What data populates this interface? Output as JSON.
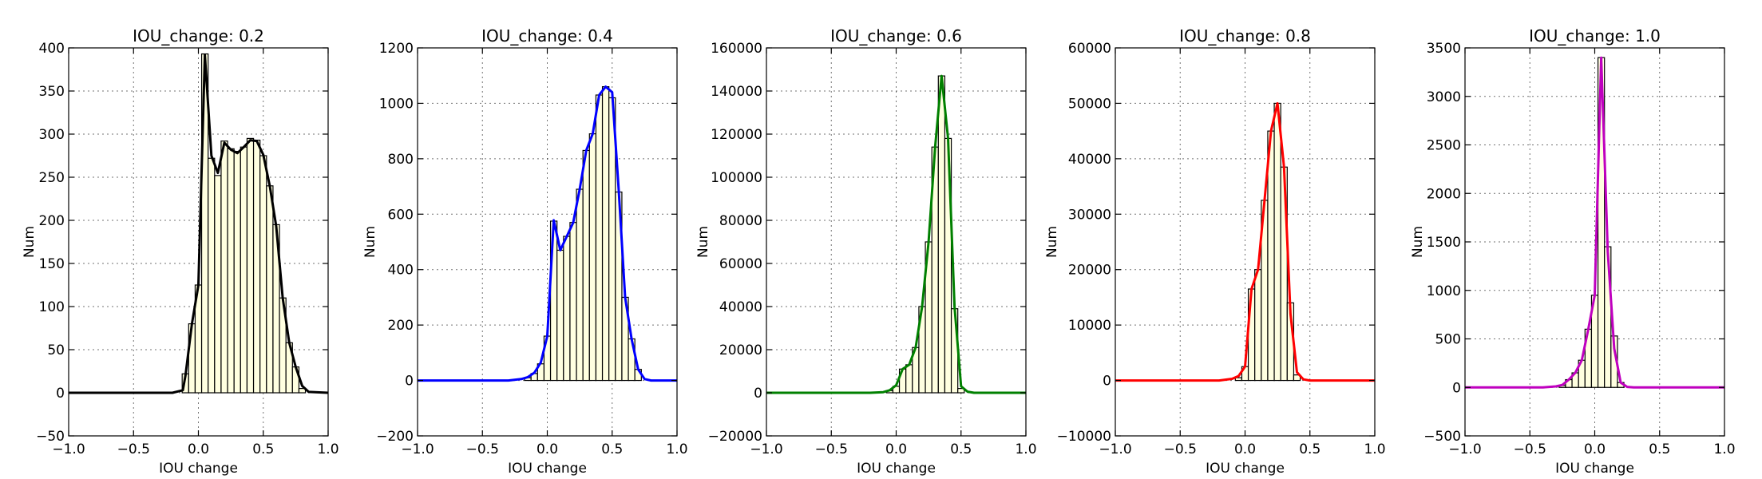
{
  "chart_data": [
    {
      "type": "bar",
      "title": "IOU_change: 0.2",
      "xlabel": "IOU change",
      "ylabel": "Num",
      "xlim": [
        -1.0,
        1.0
      ],
      "ylim": [
        -50,
        400
      ],
      "xticks": [
        "−1.0",
        "−0.5",
        "0.0",
        "0.5",
        "1.0"
      ],
      "yticks": [
        "−50",
        "0",
        "50",
        "100",
        "150",
        "200",
        "250",
        "300",
        "350",
        "400"
      ],
      "grid": true,
      "line_color": "#000000",
      "bar_color": "#ffffe0",
      "bin_width": 0.05,
      "bins": [
        {
          "x": -0.125,
          "y": 0
        },
        {
          "x": -0.1,
          "y": 22
        },
        {
          "x": -0.05,
          "y": 80
        },
        {
          "x": 0.0,
          "y": 125
        },
        {
          "x": 0.05,
          "y": 393
        },
        {
          "x": 0.1,
          "y": 272
        },
        {
          "x": 0.15,
          "y": 252
        },
        {
          "x": 0.2,
          "y": 292
        },
        {
          "x": 0.25,
          "y": 283
        },
        {
          "x": 0.3,
          "y": 280
        },
        {
          "x": 0.35,
          "y": 285
        },
        {
          "x": 0.4,
          "y": 295
        },
        {
          "x": 0.45,
          "y": 293
        },
        {
          "x": 0.5,
          "y": 275
        },
        {
          "x": 0.55,
          "y": 240
        },
        {
          "x": 0.6,
          "y": 195
        },
        {
          "x": 0.65,
          "y": 110
        },
        {
          "x": 0.7,
          "y": 58
        },
        {
          "x": 0.75,
          "y": 30
        },
        {
          "x": 0.8,
          "y": 5
        }
      ],
      "curve": [
        [
          -1.0,
          0
        ],
        [
          -0.2,
          0
        ],
        [
          -0.12,
          3
        ],
        [
          -0.1,
          20
        ],
        [
          -0.05,
          80
        ],
        [
          0.0,
          125
        ],
        [
          0.05,
          392
        ],
        [
          0.1,
          275
        ],
        [
          0.15,
          255
        ],
        [
          0.2,
          290
        ],
        [
          0.25,
          282
        ],
        [
          0.3,
          278
        ],
        [
          0.35,
          285
        ],
        [
          0.4,
          293
        ],
        [
          0.45,
          292
        ],
        [
          0.5,
          276
        ],
        [
          0.55,
          240
        ],
        [
          0.6,
          193
        ],
        [
          0.65,
          110
        ],
        [
          0.7,
          58
        ],
        [
          0.75,
          30
        ],
        [
          0.8,
          8
        ],
        [
          0.85,
          1
        ],
        [
          1.0,
          0
        ]
      ]
    },
    {
      "type": "bar",
      "title": "IOU_change: 0.4",
      "xlabel": "IOU change",
      "ylabel": "Num",
      "xlim": [
        -1.0,
        1.0
      ],
      "ylim": [
        -200,
        1200
      ],
      "xticks": [
        "−1.0",
        "−0.5",
        "0.0",
        "0.5",
        "1.0"
      ],
      "yticks": [
        "−200",
        "0",
        "200",
        "400",
        "600",
        "800",
        "1000",
        "1200"
      ],
      "grid": true,
      "line_color": "#0000ff",
      "bar_color": "#ffffe0",
      "bin_width": 0.05,
      "bins": [
        {
          "x": -0.15,
          "y": 10
        },
        {
          "x": -0.1,
          "y": 25
        },
        {
          "x": -0.05,
          "y": 60
        },
        {
          "x": 0.0,
          "y": 160
        },
        {
          "x": 0.05,
          "y": 575
        },
        {
          "x": 0.1,
          "y": 470
        },
        {
          "x": 0.15,
          "y": 520
        },
        {
          "x": 0.2,
          "y": 570
        },
        {
          "x": 0.25,
          "y": 690
        },
        {
          "x": 0.3,
          "y": 830
        },
        {
          "x": 0.35,
          "y": 890
        },
        {
          "x": 0.4,
          "y": 1030
        },
        {
          "x": 0.45,
          "y": 1060
        },
        {
          "x": 0.5,
          "y": 1020
        },
        {
          "x": 0.55,
          "y": 680
        },
        {
          "x": 0.6,
          "y": 300
        },
        {
          "x": 0.65,
          "y": 150
        },
        {
          "x": 0.7,
          "y": 40
        }
      ],
      "curve": [
        [
          -1.0,
          0
        ],
        [
          -0.3,
          0
        ],
        [
          -0.2,
          5
        ],
        [
          -0.15,
          12
        ],
        [
          -0.1,
          28
        ],
        [
          -0.05,
          65
        ],
        [
          0.0,
          160
        ],
        [
          0.05,
          578
        ],
        [
          0.1,
          470
        ],
        [
          0.15,
          520
        ],
        [
          0.2,
          570
        ],
        [
          0.25,
          690
        ],
        [
          0.3,
          830
        ],
        [
          0.35,
          890
        ],
        [
          0.4,
          1030
        ],
        [
          0.45,
          1060
        ],
        [
          0.5,
          1040
        ],
        [
          0.55,
          690
        ],
        [
          0.6,
          300
        ],
        [
          0.65,
          150
        ],
        [
          0.7,
          40
        ],
        [
          0.75,
          5
        ],
        [
          0.8,
          0
        ],
        [
          1.0,
          0
        ]
      ]
    },
    {
      "type": "bar",
      "title": "IOU_change: 0.6",
      "xlabel": "IOU change",
      "ylabel": "Num",
      "xlim": [
        -1.0,
        1.0
      ],
      "ylim": [
        -20000,
        160000
      ],
      "xticks": [
        "−1.0",
        "−0.5",
        "0.0",
        "0.5",
        "1.0"
      ],
      "yticks": [
        "−20000",
        "0",
        "20000",
        "40000",
        "60000",
        "80000",
        "100000",
        "120000",
        "140000",
        "160000"
      ],
      "grid": true,
      "line_color": "#008000",
      "bar_color": "#ffffe0",
      "bin_width": 0.05,
      "bins": [
        {
          "x": -0.05,
          "y": 1000
        },
        {
          "x": 0.0,
          "y": 3000
        },
        {
          "x": 0.05,
          "y": 11000
        },
        {
          "x": 0.1,
          "y": 13000
        },
        {
          "x": 0.15,
          "y": 21000
        },
        {
          "x": 0.2,
          "y": 40000
        },
        {
          "x": 0.25,
          "y": 70000
        },
        {
          "x": 0.3,
          "y": 114000
        },
        {
          "x": 0.35,
          "y": 147000
        },
        {
          "x": 0.4,
          "y": 118000
        },
        {
          "x": 0.45,
          "y": 39000
        },
        {
          "x": 0.5,
          "y": 2000
        }
      ],
      "curve": [
        [
          -1.0,
          0
        ],
        [
          -0.2,
          0
        ],
        [
          -0.1,
          300
        ],
        [
          -0.05,
          1200
        ],
        [
          0.0,
          3500
        ],
        [
          0.05,
          11000
        ],
        [
          0.1,
          13000
        ],
        [
          0.15,
          21000
        ],
        [
          0.2,
          40000
        ],
        [
          0.25,
          70000
        ],
        [
          0.3,
          114000
        ],
        [
          0.35,
          147000
        ],
        [
          0.4,
          118000
        ],
        [
          0.45,
          40000
        ],
        [
          0.5,
          3000
        ],
        [
          0.55,
          500
        ],
        [
          0.6,
          0
        ],
        [
          1.0,
          0
        ]
      ]
    },
    {
      "type": "bar",
      "title": "IOU_change: 0.8",
      "xlabel": "IOU change",
      "ylabel": "Num",
      "xlim": [
        -1.0,
        1.0
      ],
      "ylim": [
        -10000,
        60000
      ],
      "xticks": [
        "−1.0",
        "−0.5",
        "0.0",
        "0.5",
        "1.0"
      ],
      "yticks": [
        "−10000",
        "0",
        "10000",
        "20000",
        "30000",
        "40000",
        "50000",
        "60000"
      ],
      "grid": true,
      "line_color": "#ff0000",
      "bar_color": "#ffffe0",
      "bin_width": 0.05,
      "bins": [
        {
          "x": -0.05,
          "y": 500
        },
        {
          "x": 0.0,
          "y": 2500
        },
        {
          "x": 0.05,
          "y": 16500
        },
        {
          "x": 0.1,
          "y": 20000
        },
        {
          "x": 0.15,
          "y": 32500
        },
        {
          "x": 0.2,
          "y": 45000
        },
        {
          "x": 0.25,
          "y": 50000
        },
        {
          "x": 0.3,
          "y": 38500
        },
        {
          "x": 0.35,
          "y": 14000
        },
        {
          "x": 0.4,
          "y": 1000
        }
      ],
      "curve": [
        [
          -1.0,
          0
        ],
        [
          -0.2,
          0
        ],
        [
          -0.1,
          300
        ],
        [
          -0.05,
          800
        ],
        [
          0.0,
          2500
        ],
        [
          0.05,
          16500
        ],
        [
          0.1,
          20000
        ],
        [
          0.15,
          32500
        ],
        [
          0.2,
          45000
        ],
        [
          0.25,
          50000
        ],
        [
          0.3,
          38500
        ],
        [
          0.35,
          12000
        ],
        [
          0.4,
          1500
        ],
        [
          0.45,
          200
        ],
        [
          0.5,
          0
        ],
        [
          1.0,
          0
        ]
      ]
    },
    {
      "type": "bar",
      "title": "IOU_change: 1.0",
      "xlabel": "IOU change",
      "ylabel": "Num",
      "xlim": [
        -1.0,
        1.0
      ],
      "ylim": [
        -500,
        3500
      ],
      "xticks": [
        "−1.0",
        "−0.5",
        "0.0",
        "0.5",
        "1.0"
      ],
      "yticks": [
        "−500",
        "0",
        "500",
        "1000",
        "1500",
        "2000",
        "2500",
        "3000",
        "3500"
      ],
      "grid": true,
      "line_color": "#bf00bf",
      "bar_color": "#ffffe0",
      "bin_width": 0.05,
      "bins": [
        {
          "x": -0.25,
          "y": 20
        },
        {
          "x": -0.2,
          "y": 80
        },
        {
          "x": -0.15,
          "y": 150
        },
        {
          "x": -0.1,
          "y": 280
        },
        {
          "x": -0.05,
          "y": 600
        },
        {
          "x": 0.0,
          "y": 950
        },
        {
          "x": 0.05,
          "y": 3400
        },
        {
          "x": 0.1,
          "y": 1450
        },
        {
          "x": 0.15,
          "y": 530
        },
        {
          "x": 0.2,
          "y": 50
        }
      ],
      "curve": [
        [
          -1.0,
          0
        ],
        [
          -0.4,
          0
        ],
        [
          -0.3,
          10
        ],
        [
          -0.25,
          25
        ],
        [
          -0.2,
          80
        ],
        [
          -0.15,
          150
        ],
        [
          -0.1,
          280
        ],
        [
          -0.05,
          600
        ],
        [
          0.0,
          950
        ],
        [
          0.05,
          3400
        ],
        [
          0.1,
          1400
        ],
        [
          0.15,
          400
        ],
        [
          0.2,
          50
        ],
        [
          0.25,
          5
        ],
        [
          0.3,
          0
        ],
        [
          1.0,
          0
        ]
      ]
    }
  ]
}
